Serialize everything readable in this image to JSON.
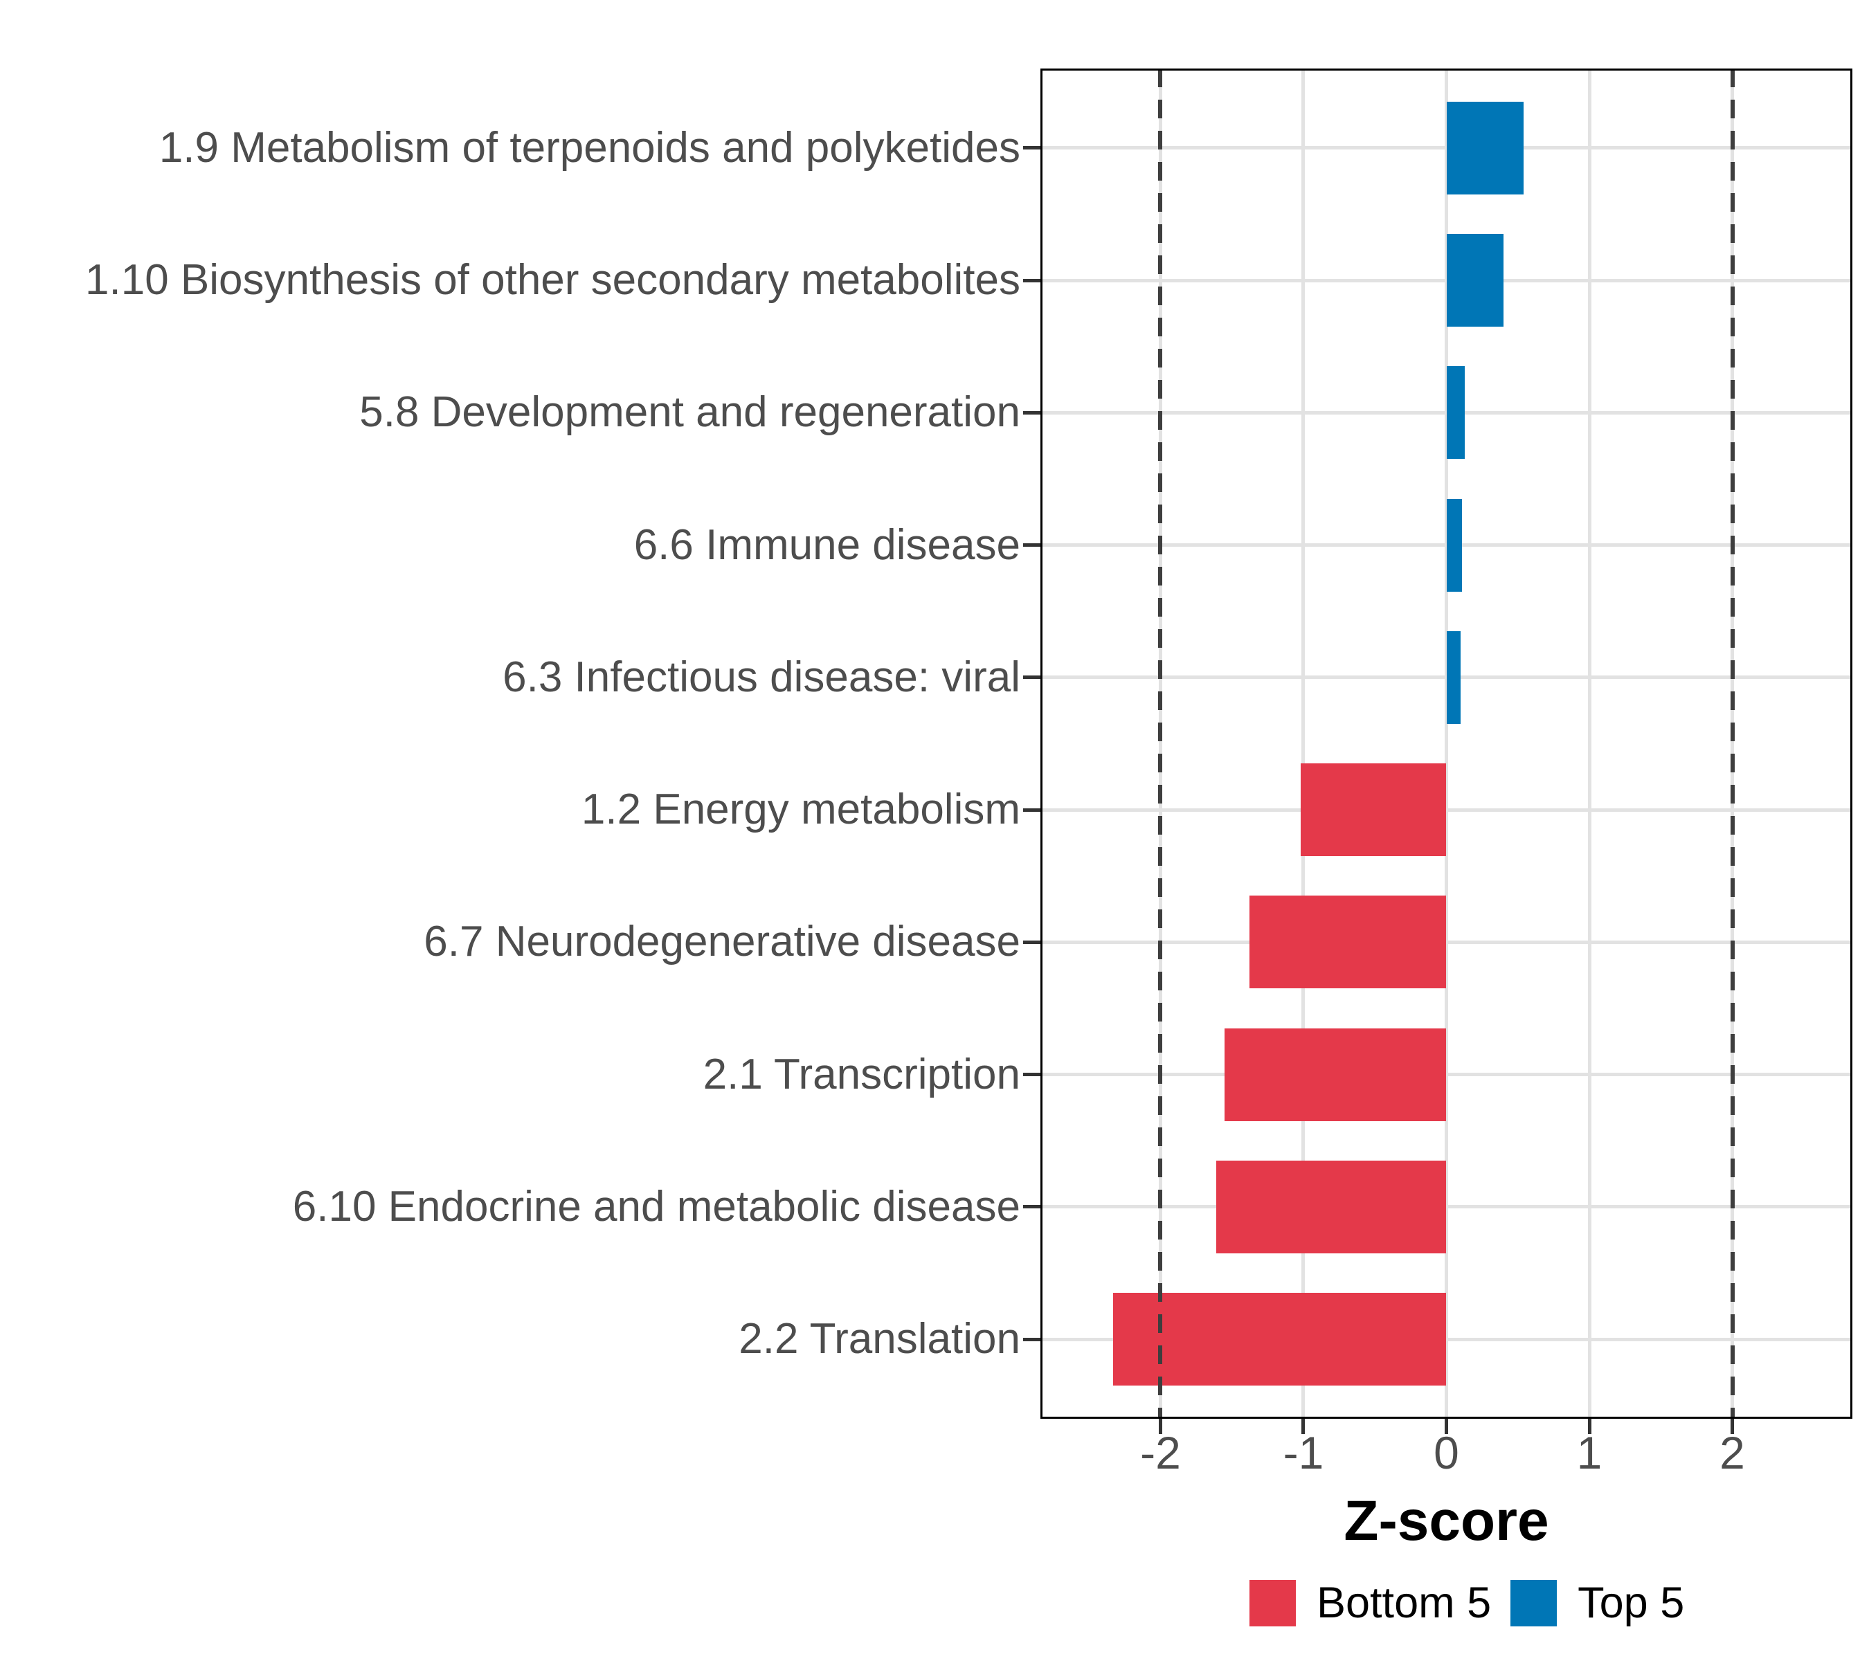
{
  "chart_data": {
    "type": "bar",
    "orientation": "horizontal",
    "title": "",
    "xlabel": "Z-score",
    "ylabel": "",
    "categories": [
      "1.9 Metabolism of terpenoids and polyketides",
      "1.10 Biosynthesis of other secondary metabolites",
      "5.8 Development and regeneration",
      "6.6 Immune disease",
      "6.3 Infectious disease: viral",
      "1.2 Energy metabolism",
      "6.7 Neurodegenerative disease",
      "2.1 Transcription",
      "6.10 Endocrine and metabolic disease",
      "2.2 Translation"
    ],
    "values": [
      0.54,
      0.4,
      0.13,
      0.11,
      0.1,
      -1.02,
      -1.38,
      -1.55,
      -1.61,
      -2.33
    ],
    "groups": [
      "Top 5",
      "Top 5",
      "Top 5",
      "Top 5",
      "Top 5",
      "Bottom 5",
      "Bottom 5",
      "Bottom 5",
      "Bottom 5",
      "Bottom 5"
    ],
    "xlim": [
      -2.84,
      2.84
    ],
    "xticks": [
      -2,
      -1,
      0,
      1,
      2
    ],
    "xtick_labels": [
      "-2",
      "-1",
      "0",
      "1",
      "2"
    ],
    "reference_lines": [
      -2,
      2
    ],
    "grid": true,
    "legend_position": "bottom",
    "legend": [
      {
        "name": "Bottom 5",
        "color": "#E4394A"
      },
      {
        "name": "Top 5",
        "color": "#0076B6"
      }
    ]
  },
  "colors": {
    "bottom5": "#E4394A",
    "top5": "#0076B6",
    "gridline": "#E2E2E2",
    "panel_border": "#000000",
    "axis_text": "#4D4D4D",
    "tick_mark": "#333333",
    "reference_line": "#3E3E3E",
    "background": "#FFFFFF"
  }
}
